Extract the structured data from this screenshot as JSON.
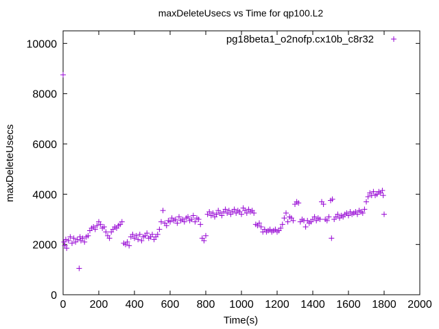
{
  "chart_data": {
    "type": "scatter",
    "title": "maxDeleteUsecs vs Time for qp100.L2",
    "xlabel": "Time(s)",
    "ylabel": "maxDeleteUsecs",
    "xlim": [
      0,
      2000
    ],
    "ylim": [
      0,
      10500
    ],
    "xticks": [
      0,
      200,
      400,
      600,
      800,
      1000,
      1200,
      1400,
      1600,
      1800,
      2000
    ],
    "yticks": [
      0,
      2000,
      4000,
      6000,
      8000,
      10000
    ],
    "grid": false,
    "legend_position": "top-right",
    "marker": "+",
    "series": [
      {
        "name": "pg18beta1_o2nofp.cx10b_c8r32",
        "color": "#9400d3",
        "points": [
          [
            0,
            8750
          ],
          [
            5,
            2100
          ],
          [
            10,
            1950
          ],
          [
            15,
            2200
          ],
          [
            20,
            1850
          ],
          [
            30,
            2150
          ],
          [
            40,
            2300
          ],
          [
            50,
            2050
          ],
          [
            60,
            2250
          ],
          [
            70,
            2100
          ],
          [
            80,
            2200
          ],
          [
            90,
            1050
          ],
          [
            95,
            2300
          ],
          [
            100,
            2150
          ],
          [
            110,
            2250
          ],
          [
            120,
            2100
          ],
          [
            130,
            2300
          ],
          [
            140,
            2350
          ],
          [
            150,
            2550
          ],
          [
            160,
            2650
          ],
          [
            170,
            2700
          ],
          [
            180,
            2600
          ],
          [
            190,
            2750
          ],
          [
            200,
            2900
          ],
          [
            210,
            2800
          ],
          [
            220,
            2650
          ],
          [
            230,
            2700
          ],
          [
            240,
            2500
          ],
          [
            250,
            2350
          ],
          [
            260,
            2250
          ],
          [
            270,
            2500
          ],
          [
            280,
            2600
          ],
          [
            290,
            2700
          ],
          [
            300,
            2650
          ],
          [
            310,
            2750
          ],
          [
            320,
            2800
          ],
          [
            330,
            2900
          ],
          [
            340,
            2050
          ],
          [
            350,
            2000
          ],
          [
            360,
            2100
          ],
          [
            370,
            1950
          ],
          [
            380,
            2300
          ],
          [
            390,
            2400
          ],
          [
            400,
            2250
          ],
          [
            410,
            2350
          ],
          [
            420,
            2200
          ],
          [
            430,
            2400
          ],
          [
            440,
            2150
          ],
          [
            450,
            2300
          ],
          [
            460,
            2350
          ],
          [
            470,
            2450
          ],
          [
            480,
            2250
          ],
          [
            490,
            2300
          ],
          [
            500,
            2400
          ],
          [
            510,
            2200
          ],
          [
            520,
            2300
          ],
          [
            530,
            2400
          ],
          [
            540,
            2600
          ],
          [
            550,
            2900
          ],
          [
            560,
            3350
          ],
          [
            570,
            2850
          ],
          [
            580,
            2750
          ],
          [
            590,
            2950
          ],
          [
            600,
            2900
          ],
          [
            610,
            3050
          ],
          [
            620,
            2950
          ],
          [
            630,
            3000
          ],
          [
            640,
            2850
          ],
          [
            650,
            3100
          ],
          [
            660,
            2950
          ],
          [
            670,
            3000
          ],
          [
            680,
            2900
          ],
          [
            690,
            3050
          ],
          [
            700,
            3100
          ],
          [
            710,
            2950
          ],
          [
            720,
            3000
          ],
          [
            730,
            3150
          ],
          [
            740,
            2900
          ],
          [
            750,
            3050
          ],
          [
            760,
            3000
          ],
          [
            770,
            2800
          ],
          [
            780,
            2250
          ],
          [
            790,
            2150
          ],
          [
            800,
            2350
          ],
          [
            810,
            3200
          ],
          [
            820,
            3300
          ],
          [
            830,
            3150
          ],
          [
            840,
            3250
          ],
          [
            850,
            3100
          ],
          [
            860,
            3200
          ],
          [
            870,
            3350
          ],
          [
            880,
            3250
          ],
          [
            890,
            3150
          ],
          [
            900,
            3300
          ],
          [
            910,
            3400
          ],
          [
            920,
            3250
          ],
          [
            930,
            3350
          ],
          [
            940,
            3200
          ],
          [
            950,
            3300
          ],
          [
            960,
            3400
          ],
          [
            970,
            3250
          ],
          [
            980,
            3350
          ],
          [
            990,
            3300
          ],
          [
            1000,
            3200
          ],
          [
            1010,
            3450
          ],
          [
            1020,
            3350
          ],
          [
            1030,
            3250
          ],
          [
            1040,
            3400
          ],
          [
            1050,
            3300
          ],
          [
            1060,
            3350
          ],
          [
            1070,
            3250
          ],
          [
            1080,
            2800
          ],
          [
            1090,
            2750
          ],
          [
            1100,
            2850
          ],
          [
            1110,
            2700
          ],
          [
            1120,
            2500
          ],
          [
            1130,
            2600
          ],
          [
            1140,
            2500
          ],
          [
            1150,
            2550
          ],
          [
            1160,
            2600
          ],
          [
            1170,
            2500
          ],
          [
            1180,
            2550
          ],
          [
            1190,
            2600
          ],
          [
            1200,
            2500
          ],
          [
            1210,
            2550
          ],
          [
            1220,
            2650
          ],
          [
            1230,
            2800
          ],
          [
            1240,
            3050
          ],
          [
            1250,
            3250
          ],
          [
            1260,
            2900
          ],
          [
            1270,
            3100
          ],
          [
            1280,
            3050
          ],
          [
            1290,
            2950
          ],
          [
            1300,
            3600
          ],
          [
            1310,
            3700
          ],
          [
            1320,
            3650
          ],
          [
            1330,
            2900
          ],
          [
            1340,
            3000
          ],
          [
            1350,
            2950
          ],
          [
            1360,
            2700
          ],
          [
            1370,
            2950
          ],
          [
            1380,
            2850
          ],
          [
            1390,
            2900
          ],
          [
            1400,
            3000
          ],
          [
            1410,
            3100
          ],
          [
            1420,
            2950
          ],
          [
            1430,
            3050
          ],
          [
            1440,
            3000
          ],
          [
            1450,
            3700
          ],
          [
            1460,
            3600
          ],
          [
            1470,
            3000
          ],
          [
            1480,
            2950
          ],
          [
            1490,
            3100
          ],
          [
            1500,
            3750
          ],
          [
            1505,
            2250
          ],
          [
            1510,
            3800
          ],
          [
            1520,
            3000
          ],
          [
            1530,
            3100
          ],
          [
            1540,
            3200
          ],
          [
            1550,
            3050
          ],
          [
            1560,
            3150
          ],
          [
            1570,
            3100
          ],
          [
            1580,
            3200
          ],
          [
            1590,
            3250
          ],
          [
            1600,
            3150
          ],
          [
            1610,
            3300
          ],
          [
            1620,
            3200
          ],
          [
            1630,
            3250
          ],
          [
            1640,
            3300
          ],
          [
            1650,
            3200
          ],
          [
            1660,
            3350
          ],
          [
            1670,
            3300
          ],
          [
            1680,
            3250
          ],
          [
            1690,
            3400
          ],
          [
            1700,
            3700
          ],
          [
            1710,
            3900
          ],
          [
            1720,
            4050
          ],
          [
            1730,
            3950
          ],
          [
            1740,
            4100
          ],
          [
            1750,
            3950
          ],
          [
            1760,
            4000
          ],
          [
            1770,
            4100
          ],
          [
            1780,
            4050
          ],
          [
            1790,
            4150
          ],
          [
            1795,
            3950
          ],
          [
            1800,
            3200
          ]
        ]
      }
    ]
  }
}
